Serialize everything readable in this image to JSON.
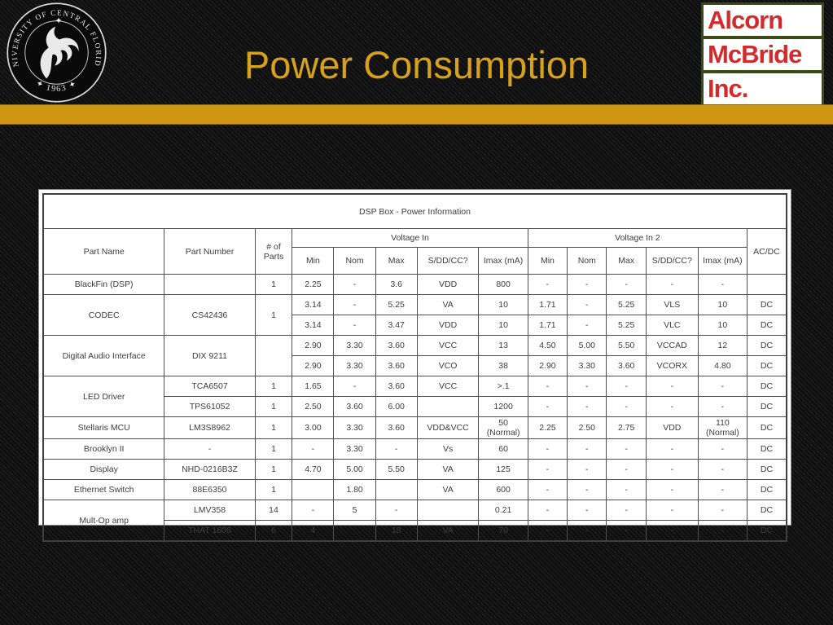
{
  "slide": {
    "title": "Power Consumption",
    "alcorn_logo": {
      "line1": "Alcorn",
      "line2": "McBride",
      "line3": "Inc.",
      "text_color": "#d32b2b",
      "border_color": "#3c4a16"
    },
    "ucf_seal": {
      "ring_text": "UNIVERSITY OF CENTRAL FLORIDA",
      "bottom_text": "✦ 1963 ✦"
    },
    "colors": {
      "accent_gold": "#cf9613",
      "title_gold": "#d7a11c",
      "background": "#141414"
    }
  },
  "table": {
    "title": "DSP Box - Power Information",
    "headers": {
      "part_name": "Part Name",
      "part_number": "Part Number",
      "num_parts": "# of\nParts",
      "voltage_in": "Voltage In",
      "voltage_in_2": "Voltage In 2",
      "min": "Min",
      "nom": "Nom",
      "max": "Max",
      "sddcc": "S/DD/CC?",
      "imax": "Imax (mA)",
      "acdc": "AC/DC"
    },
    "rows": [
      [
        "BlackFin (DSP)",
        "",
        "1",
        "2.25",
        "-",
        "3.6",
        "VDD",
        "800",
        "-",
        "-",
        "-",
        "-",
        "-",
        ""
      ],
      [
        {
          "t": "CODEC",
          "rs": 2
        },
        {
          "t": "CS42436",
          "rs": 2
        },
        {
          "t": "1",
          "rs": 2
        },
        "3.14",
        "-",
        "5.25",
        "VA",
        "10",
        "1.71",
        "-",
        "5.25",
        "VLS",
        "10",
        "DC"
      ],
      [
        "3.14",
        "-",
        "3.47",
        "VDD",
        "10",
        "1.71",
        "-",
        "5.25",
        "VLC",
        "10",
        "DC"
      ],
      [
        {
          "t": "Digital Audio Interface",
          "rs": 2
        },
        {
          "t": "DIX 9211",
          "rs": 2
        },
        {
          "t": "",
          "rs": 2
        },
        "2.90",
        "3.30",
        "3.60",
        "VCC",
        "13",
        "4.50",
        "5.00",
        "5.50",
        "VCCAD",
        "12",
        "DC"
      ],
      [
        "2.90",
        "3.30",
        "3.60",
        "VCO",
        "38",
        "2.90",
        "3.30",
        "3.60",
        "VCORX",
        "4.80",
        "DC"
      ],
      [
        {
          "t": "LED Driver",
          "rs": 2
        },
        "TCA6507",
        "1",
        "1.65",
        "-",
        "3.60",
        "VCC",
        ">.1",
        "-",
        "-",
        "-",
        "-",
        "-",
        "DC"
      ],
      [
        "TPS61052",
        "1",
        "2.50",
        "3.60",
        "6.00",
        "",
        "1200",
        "-",
        "-",
        "-",
        "-",
        "-",
        "DC"
      ],
      [
        "Stellaris MCU",
        "LM3S8962",
        "1",
        "3.00",
        "3.30",
        "3.60",
        "VDD&VCC",
        "50\n(Normal)",
        "2.25",
        "2.50",
        "2.75",
        "VDD",
        "110\n(Normal)",
        "DC"
      ],
      [
        "Brooklyn II",
        "-",
        "1",
        "-",
        "3.30",
        "-",
        "Vs",
        "60",
        "-",
        "-",
        "-",
        "-",
        "-",
        "DC"
      ],
      [
        "Display",
        "NHD-0216B3Z",
        "1",
        "4.70",
        "5.00",
        "5.50",
        "VA",
        "125",
        "-",
        "-",
        "-",
        "-",
        "-",
        "DC"
      ],
      [
        "Ethernet Switch",
        "88E6350",
        "1",
        "",
        "1.80",
        "",
        "VA",
        "600",
        "-",
        "-",
        "-",
        "-",
        "-",
        "DC"
      ],
      [
        {
          "t": "Mult-Op amp",
          "rs": 2
        },
        "LMV358",
        "14",
        "-",
        "5",
        "-",
        "",
        "0.21",
        "-",
        "-",
        "-",
        "-",
        "-",
        "DC"
      ],
      [
        "THAT 1606",
        "6",
        "4",
        "",
        "18",
        "VA",
        "70",
        "-",
        "-",
        "-",
        "-",
        "-",
        "DC"
      ]
    ]
  }
}
